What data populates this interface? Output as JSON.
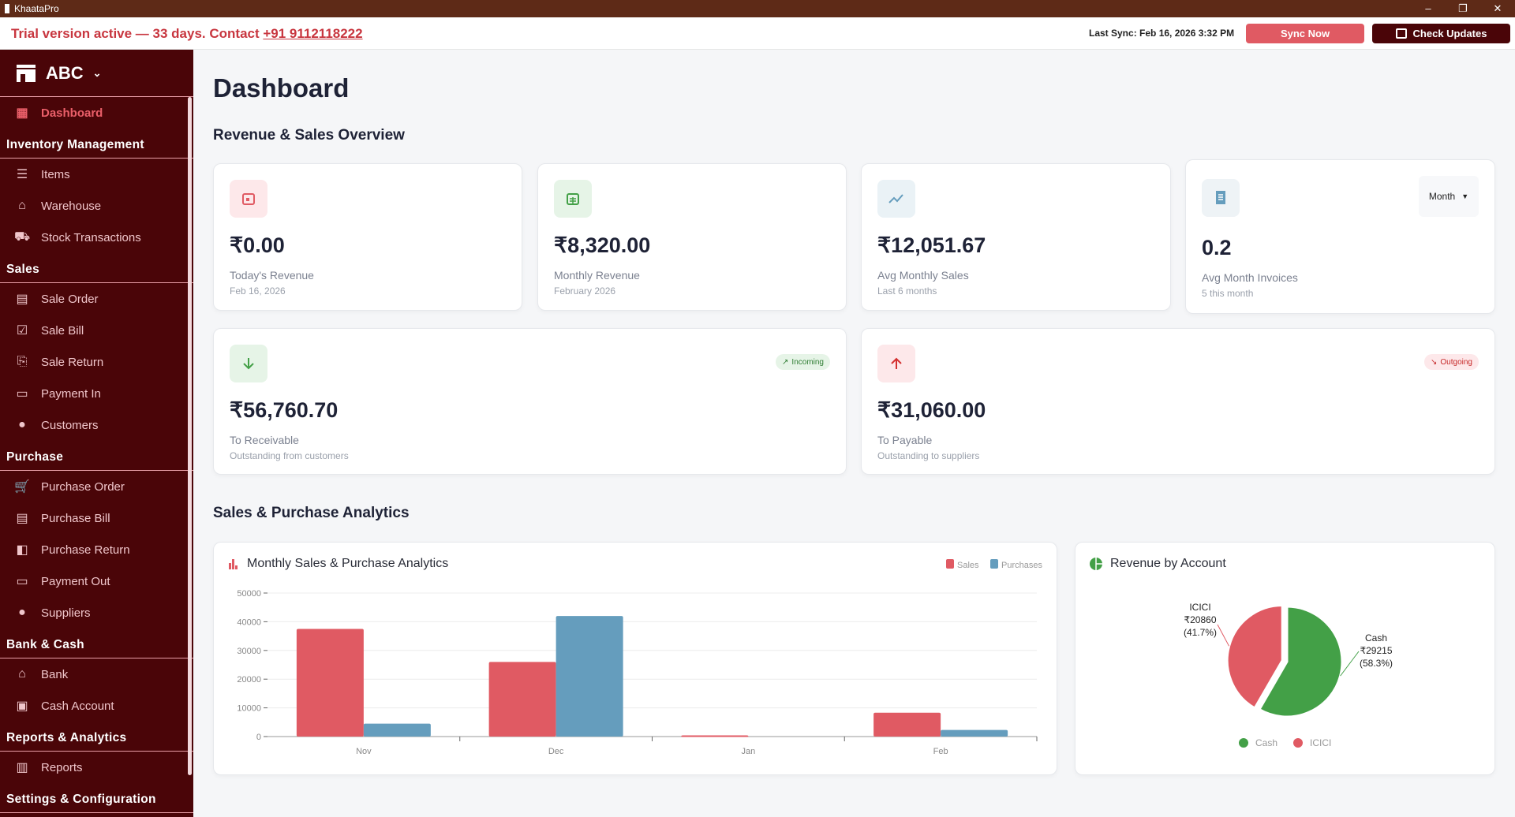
{
  "window": {
    "title": "KhaataPro",
    "controls": [
      "–",
      "❐",
      "✕"
    ]
  },
  "trial": {
    "message": "Trial version active — 33 days. Contact ",
    "phone": "+91 9112118222"
  },
  "header": {
    "last_sync": "Last Sync: Feb 16, 2026 3:32 PM",
    "sync_label": "Sync Now",
    "update_label": "Check Updates"
  },
  "sidebar": {
    "company": "ABC",
    "items": [
      {
        "type": "item",
        "label": "Dashboard",
        "icon": "dashboard-icon",
        "active": true
      },
      {
        "type": "section",
        "label": "Inventory Management"
      },
      {
        "type": "item",
        "label": "Items",
        "icon": "list-icon"
      },
      {
        "type": "item",
        "label": "Warehouse",
        "icon": "warehouse-icon"
      },
      {
        "type": "item",
        "label": "Stock Transactions",
        "icon": "dolly-icon"
      },
      {
        "type": "section",
        "label": "Sales"
      },
      {
        "type": "item",
        "label": "Sale Order",
        "icon": "cash-register-icon"
      },
      {
        "type": "item",
        "label": "Sale Bill",
        "icon": "check-square-icon"
      },
      {
        "type": "item",
        "label": "Sale Return",
        "icon": "return-icon"
      },
      {
        "type": "item",
        "label": "Payment In",
        "icon": "credit-card-icon"
      },
      {
        "type": "item",
        "label": "Customers",
        "icon": "user-icon"
      },
      {
        "type": "section",
        "label": "Purchase"
      },
      {
        "type": "item",
        "label": "Purchase Order",
        "icon": "cart-icon"
      },
      {
        "type": "item",
        "label": "Purchase Bill",
        "icon": "receipt-icon"
      },
      {
        "type": "item",
        "label": "Purchase Return",
        "icon": "return-box-icon"
      },
      {
        "type": "item",
        "label": "Payment Out",
        "icon": "credit-card-icon"
      },
      {
        "type": "item",
        "label": "Suppliers",
        "icon": "user-icon"
      },
      {
        "type": "section",
        "label": "Bank & Cash"
      },
      {
        "type": "item",
        "label": "Bank",
        "icon": "bank-icon"
      },
      {
        "type": "item",
        "label": "Cash Account",
        "icon": "money-icon"
      },
      {
        "type": "section",
        "label": "Reports & Analytics"
      },
      {
        "type": "item",
        "label": "Reports",
        "icon": "chart-icon"
      },
      {
        "type": "section",
        "label": "Settings & Configuration"
      }
    ]
  },
  "main": {
    "title": "Dashboard",
    "overview_title": "Revenue & Sales Overview",
    "analytics_title": "Sales & Purchase Analytics",
    "cards": [
      {
        "value": "₹0.00",
        "label": "Today's Revenue",
        "sub": "Feb 16, 2026"
      },
      {
        "value": "₹8,320.00",
        "label": "Monthly Revenue",
        "sub": "February 2026"
      },
      {
        "value": "₹12,051.67",
        "label": "Avg Monthly Sales",
        "sub": "Last 6 months"
      },
      {
        "value": "0.2",
        "label": "Avg Month Invoices",
        "sub": "5 this month",
        "select": "Month"
      },
      {
        "value": "₹56,760.70",
        "label": "To Receivable",
        "sub": "Outstanding from customers",
        "badge": "Incoming"
      },
      {
        "value": "₹31,060.00",
        "label": "To Payable",
        "sub": "Outstanding to suppliers",
        "badge": "Outgoing"
      }
    ]
  },
  "colors": {
    "sales": "#e05a63",
    "purchases": "#659dbd",
    "cash": "#43a047",
    "icici": "#e05a63"
  },
  "chart_data": [
    {
      "type": "bar",
      "title": "Monthly Sales & Purchase Analytics",
      "categories": [
        "Nov",
        "Dec",
        "Jan",
        "Feb"
      ],
      "series": [
        {
          "name": "Sales",
          "values": [
            37500,
            26000,
            400,
            8320
          ]
        },
        {
          "name": "Purchases",
          "values": [
            4500,
            42000,
            0,
            2300
          ]
        }
      ],
      "yticks": [
        "0",
        "10000",
        "20000",
        "30000",
        "40000",
        "50000"
      ],
      "ylim": [
        0,
        50000
      ],
      "legend": "top-right",
      "grid": true
    },
    {
      "type": "pie",
      "title": "Revenue by Account",
      "slices": [
        {
          "name": "Cash",
          "value": 29215,
          "amount": "₹29215",
          "pct": "(58.3%)"
        },
        {
          "name": "ICICI",
          "value": 20860,
          "amount": "₹20860",
          "pct": "(41.7%)"
        }
      ],
      "legend": "bottom"
    }
  ]
}
